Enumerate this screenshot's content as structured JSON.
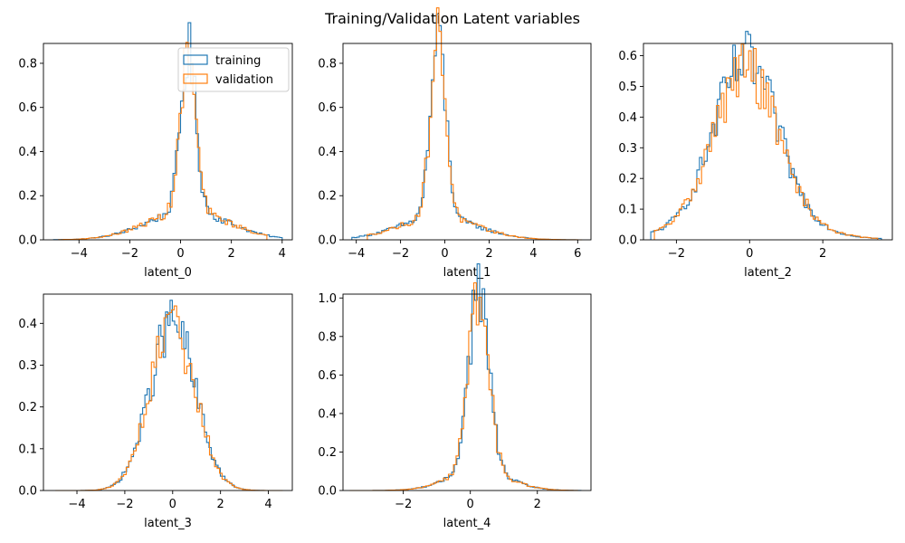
{
  "figure": {
    "title": "Training/Validation Latent variables"
  },
  "colors": {
    "training": "#1f77b4",
    "validation": "#ff7f0e",
    "axis": "#000000",
    "background": "#ffffff"
  },
  "chart_data": [
    {
      "type": "histogram-step",
      "xlabel": "latent_0",
      "xlim": [
        -5.4,
        4.4
      ],
      "ylim": [
        0,
        0.89
      ],
      "xticks": [
        -4,
        -2,
        0,
        2,
        4
      ],
      "yticks": [
        0.0,
        0.2,
        0.4,
        0.6,
        0.8
      ],
      "legend": {
        "placement": "top-right",
        "entries": [
          "training",
          "validation"
        ]
      },
      "series": [
        {
          "name": "training",
          "shape": {
            "center": 0.3,
            "sigma": 0.3,
            "amp": 0.72,
            "tail_sigma": 1.6,
            "tail_amp": 0.13,
            "min": -5.0,
            "max": 4.0
          }
        },
        {
          "name": "validation",
          "shape": {
            "center": 0.3,
            "sigma": 0.3,
            "amp": 0.71,
            "tail_sigma": 1.6,
            "tail_amp": 0.13,
            "min": -4.8,
            "max": 3.4
          }
        }
      ]
    },
    {
      "type": "histogram-step",
      "xlabel": "latent_1",
      "xlim": [
        -4.6,
        6.6
      ],
      "ylim": [
        0,
        0.89
      ],
      "xticks": [
        -4,
        -2,
        0,
        2,
        4,
        6
      ],
      "yticks": [
        0.0,
        0.2,
        0.4,
        0.6,
        0.8
      ],
      "series": [
        {
          "name": "training",
          "shape": {
            "center": -0.3,
            "sigma": 0.35,
            "amp": 0.8,
            "tail_sigma": 1.8,
            "tail_amp": 0.1,
            "min": -4.2,
            "max": 5.9
          }
        },
        {
          "name": "validation",
          "shape": {
            "center": -0.3,
            "sigma": 0.35,
            "amp": 0.82,
            "tail_sigma": 1.8,
            "tail_amp": 0.1,
            "min": -3.5,
            "max": 6.2
          }
        }
      ]
    },
    {
      "type": "histogram-step",
      "xlabel": "latent_2",
      "xlim": [
        -2.9,
        3.9
      ],
      "ylim": [
        0,
        0.64
      ],
      "xticks": [
        -2,
        0,
        2
      ],
      "yticks": [
        0.0,
        0.1,
        0.2,
        0.3,
        0.4,
        0.5,
        0.6
      ],
      "series": [
        {
          "name": "training",
          "shape": {
            "center": -0.1,
            "sigma": 0.85,
            "amp": 0.5,
            "tail_sigma": 1.5,
            "tail_amp": 0.08,
            "min": -2.7,
            "max": 3.6
          }
        },
        {
          "name": "validation",
          "shape": {
            "center": -0.1,
            "sigma": 0.85,
            "amp": 0.48,
            "tail_sigma": 1.5,
            "tail_amp": 0.08,
            "min": -2.6,
            "max": 3.5
          }
        }
      ]
    },
    {
      "type": "histogram-step",
      "xlabel": "latent_3",
      "xlim": [
        -5.4,
        5.0
      ],
      "ylim": [
        0,
        0.47
      ],
      "xticks": [
        -4,
        -2,
        0,
        2,
        4
      ],
      "yticks": [
        0.0,
        0.1,
        0.2,
        0.3,
        0.4
      ],
      "series": [
        {
          "name": "training",
          "shape": {
            "center": 0.0,
            "sigma": 0.95,
            "amp": 0.4,
            "tail_sigma": 1.5,
            "tail_amp": 0.0,
            "min": -4.6,
            "max": 4.0
          }
        },
        {
          "name": "validation",
          "shape": {
            "center": 0.0,
            "sigma": 0.95,
            "amp": 0.39,
            "tail_sigma": 1.5,
            "tail_amp": 0.0,
            "min": -4.9,
            "max": 4.6
          }
        }
      ]
    },
    {
      "type": "histogram-step",
      "xlabel": "latent_4",
      "xlim": [
        -3.8,
        3.6
      ],
      "ylim": [
        0,
        1.02
      ],
      "xticks": [
        -2,
        0,
        2
      ],
      "yticks": [
        0.0,
        0.2,
        0.4,
        0.6,
        0.8,
        1.0
      ],
      "series": [
        {
          "name": "training",
          "shape": {
            "center": 0.25,
            "sigma": 0.3,
            "amp": 0.95,
            "tail_sigma": 0.9,
            "tail_amp": 0.1,
            "min": -3.5,
            "max": 3.3
          }
        },
        {
          "name": "validation",
          "shape": {
            "center": 0.25,
            "sigma": 0.3,
            "amp": 0.93,
            "tail_sigma": 0.9,
            "tail_amp": 0.1,
            "min": -3.6,
            "max": 3.2
          }
        }
      ]
    }
  ]
}
